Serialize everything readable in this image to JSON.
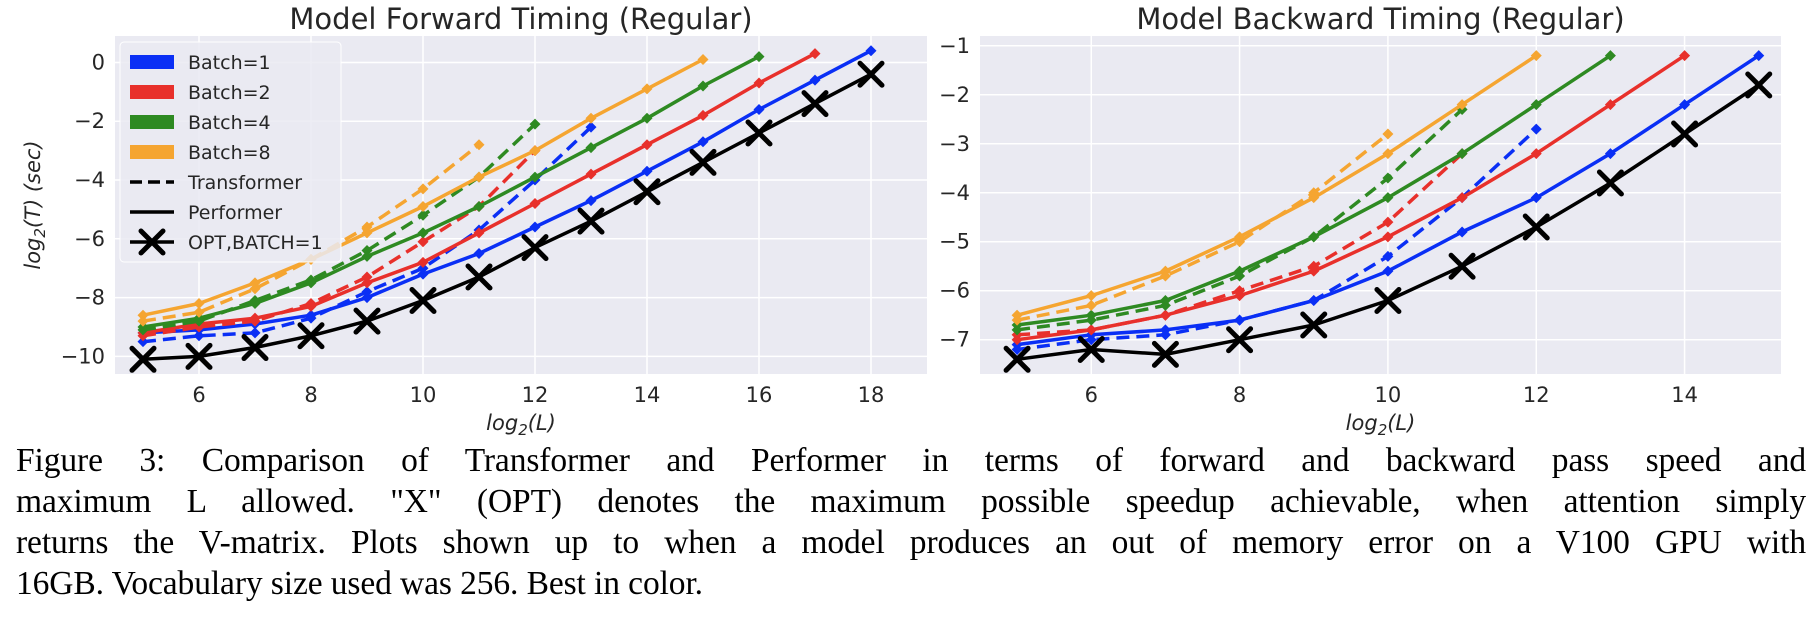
{
  "chart_data": [
    {
      "type": "line",
      "title": "Model Forward Timing (Regular)",
      "xlabel": "log2(L)",
      "ylabel": "log2(T) (sec)",
      "xlim": [
        4.5,
        19.0
      ],
      "ylim": [
        -10.6,
        0.9
      ],
      "xticks": [
        6,
        8,
        10,
        12,
        14,
        16,
        18
      ],
      "yticks": [
        0,
        -2,
        -4,
        -6,
        -8,
        -10
      ],
      "grid": true,
      "legend_position": "top-left",
      "series": [
        {
          "color": "#0a2ff5",
          "style": "solid",
          "x": [
            5,
            6,
            7,
            8,
            9,
            10,
            11,
            12,
            13,
            14,
            15,
            16,
            17,
            18
          ],
          "y": [
            -9.2,
            -9.1,
            -8.9,
            -8.6,
            -8.0,
            -7.2,
            -6.5,
            -5.6,
            -4.7,
            -3.7,
            -2.7,
            -1.6,
            -0.6,
            0.4
          ]
        },
        {
          "color": "#0a2ff5",
          "style": "dashed",
          "x": [
            5,
            6,
            7,
            8,
            9,
            10,
            11,
            12,
            13
          ],
          "y": [
            -9.5,
            -9.3,
            -9.2,
            -8.7,
            -7.8,
            -7.0,
            -5.7,
            -4.0,
            -2.2
          ]
        },
        {
          "color": "#e8302b",
          "style": "solid",
          "x": [
            5,
            6,
            7,
            8,
            9,
            10,
            11,
            12,
            13,
            14,
            15,
            16,
            17
          ],
          "y": [
            -9.2,
            -8.9,
            -8.7,
            -8.3,
            -7.5,
            -6.8,
            -5.8,
            -4.8,
            -3.8,
            -2.8,
            -1.8,
            -0.7,
            0.3
          ]
        },
        {
          "color": "#e8302b",
          "style": "dashed",
          "x": [
            5,
            6,
            7,
            8,
            9,
            10,
            11,
            12
          ],
          "y": [
            -9.3,
            -9.0,
            -8.8,
            -8.2,
            -7.3,
            -6.1,
            -4.9,
            -3.0
          ]
        },
        {
          "color": "#2e8a22",
          "style": "solid",
          "x": [
            5,
            6,
            7,
            8,
            9,
            10,
            11,
            12,
            13,
            14,
            15,
            16
          ],
          "y": [
            -9.0,
            -8.7,
            -8.2,
            -7.5,
            -6.6,
            -5.8,
            -4.9,
            -3.9,
            -2.9,
            -1.9,
            -0.8,
            0.2
          ]
        },
        {
          "color": "#2e8a22",
          "style": "dashed",
          "x": [
            5,
            6,
            7,
            8,
            9,
            10,
            11,
            12
          ],
          "y": [
            -9.1,
            -8.8,
            -8.1,
            -7.4,
            -6.4,
            -5.2,
            -3.9,
            -2.1
          ]
        },
        {
          "color": "#f5a531",
          "style": "solid",
          "x": [
            5,
            6,
            7,
            8,
            9,
            10,
            11,
            12,
            13,
            14,
            15
          ],
          "y": [
            -8.6,
            -8.2,
            -7.5,
            -6.7,
            -5.8,
            -4.9,
            -3.9,
            -3.0,
            -1.9,
            -0.9,
            0.1
          ]
        },
        {
          "color": "#f5a531",
          "style": "dashed",
          "x": [
            5,
            6,
            7,
            8,
            9,
            10,
            11
          ],
          "y": [
            -8.8,
            -8.5,
            -7.7,
            -6.7,
            -5.6,
            -4.3,
            -2.8
          ]
        },
        {
          "color": "#000000",
          "style": "solid",
          "marker": "x",
          "x": [
            5,
            6,
            7,
            8,
            9,
            10,
            11,
            12,
            13,
            14,
            15,
            16,
            17,
            18
          ],
          "y": [
            -10.1,
            -10.0,
            -9.7,
            -9.3,
            -8.8,
            -8.1,
            -7.3,
            -6.3,
            -5.4,
            -4.4,
            -3.4,
            -2.4,
            -1.4,
            -0.4
          ]
        }
      ]
    },
    {
      "type": "line",
      "title": "Model Backward Timing (Regular)",
      "xlabel": "log2(L)",
      "ylabel": "",
      "xlim": [
        4.5,
        15.3
      ],
      "ylim": [
        -7.7,
        -0.8
      ],
      "xticks": [
        6,
        8,
        10,
        12,
        14
      ],
      "yticks": [
        -1,
        -2,
        -3,
        -4,
        -5,
        -6,
        -7
      ],
      "grid": true,
      "series": [
        {
          "color": "#0a2ff5",
          "style": "solid",
          "x": [
            5,
            6,
            7,
            8,
            9,
            10,
            11,
            12,
            13,
            14,
            15
          ],
          "y": [
            -7.1,
            -6.9,
            -6.8,
            -6.6,
            -6.2,
            -5.6,
            -4.8,
            -4.1,
            -3.2,
            -2.2,
            -1.2
          ]
        },
        {
          "color": "#0a2ff5",
          "style": "dashed",
          "x": [
            5,
            6,
            7,
            8,
            9,
            10,
            11,
            12
          ],
          "y": [
            -7.2,
            -7.0,
            -6.9,
            -6.6,
            -6.2,
            -5.3,
            -4.1,
            -2.7
          ]
        },
        {
          "color": "#e8302b",
          "style": "solid",
          "x": [
            5,
            6,
            7,
            8,
            9,
            10,
            11,
            12,
            13,
            14
          ],
          "y": [
            -7.0,
            -6.8,
            -6.5,
            -6.1,
            -5.6,
            -4.9,
            -4.1,
            -3.2,
            -2.2,
            -1.2
          ]
        },
        {
          "color": "#e8302b",
          "style": "dashed",
          "x": [
            5,
            6,
            7,
            8,
            9,
            10,
            11
          ],
          "y": [
            -6.9,
            -6.8,
            -6.5,
            -6.0,
            -5.5,
            -4.6,
            -3.2
          ]
        },
        {
          "color": "#2e8a22",
          "style": "solid",
          "x": [
            5,
            6,
            7,
            8,
            9,
            10,
            11,
            12,
            13
          ],
          "y": [
            -6.7,
            -6.5,
            -6.2,
            -5.6,
            -4.9,
            -4.1,
            -3.2,
            -2.2,
            -1.2
          ]
        },
        {
          "color": "#2e8a22",
          "style": "dashed",
          "x": [
            5,
            6,
            7,
            8,
            9,
            10,
            11
          ],
          "y": [
            -6.8,
            -6.6,
            -6.3,
            -5.7,
            -4.9,
            -3.7,
            -2.3
          ]
        },
        {
          "color": "#f5a531",
          "style": "solid",
          "x": [
            5,
            6,
            7,
            8,
            9,
            10,
            11,
            12
          ],
          "y": [
            -6.5,
            -6.1,
            -5.6,
            -4.9,
            -4.1,
            -3.2,
            -2.2,
            -1.2
          ]
        },
        {
          "color": "#f5a531",
          "style": "dashed",
          "x": [
            5,
            6,
            7,
            8,
            9,
            10
          ],
          "y": [
            -6.6,
            -6.3,
            -5.7,
            -5.0,
            -4.0,
            -2.8
          ]
        },
        {
          "color": "#000000",
          "style": "solid",
          "marker": "x",
          "x": [
            5,
            6,
            7,
            8,
            9,
            10,
            11,
            12,
            13,
            14,
            15
          ],
          "y": [
            -7.4,
            -7.2,
            -7.3,
            -7.0,
            -6.7,
            -6.2,
            -5.5,
            -4.7,
            -3.8,
            -2.8,
            -1.8
          ]
        }
      ]
    }
  ],
  "legend": [
    {
      "label": "Batch=1",
      "kind": "patch",
      "color": "#0a2ff5"
    },
    {
      "label": "Batch=2",
      "kind": "patch",
      "color": "#e8302b"
    },
    {
      "label": "Batch=4",
      "kind": "patch",
      "color": "#2e8a22"
    },
    {
      "label": "Batch=8",
      "kind": "patch",
      "color": "#f5a531"
    },
    {
      "label": "Transformer",
      "kind": "dashed",
      "color": "#000000"
    },
    {
      "label": "Performer",
      "kind": "solid",
      "color": "#000000"
    },
    {
      "label": "OPT,BATCH=1",
      "kind": "x",
      "color": "#000000"
    }
  ],
  "colors": {
    "plot_bg": "#eaeaf2",
    "grid": "#ffffff"
  },
  "caption": {
    "lines": [
      "Figure 3:  Comparison of Transformer and Performer in terms of forward and backward pass speed and",
      "maximum L allowed. \"X\" (OPT) denotes the maximum possible speedup achievable, when attention simply",
      "returns the V-matrix. Plots shown up to when a model produces an out of memory error on a V100 GPU with",
      "16GB. Vocabulary size used was 256. Best in color."
    ]
  }
}
